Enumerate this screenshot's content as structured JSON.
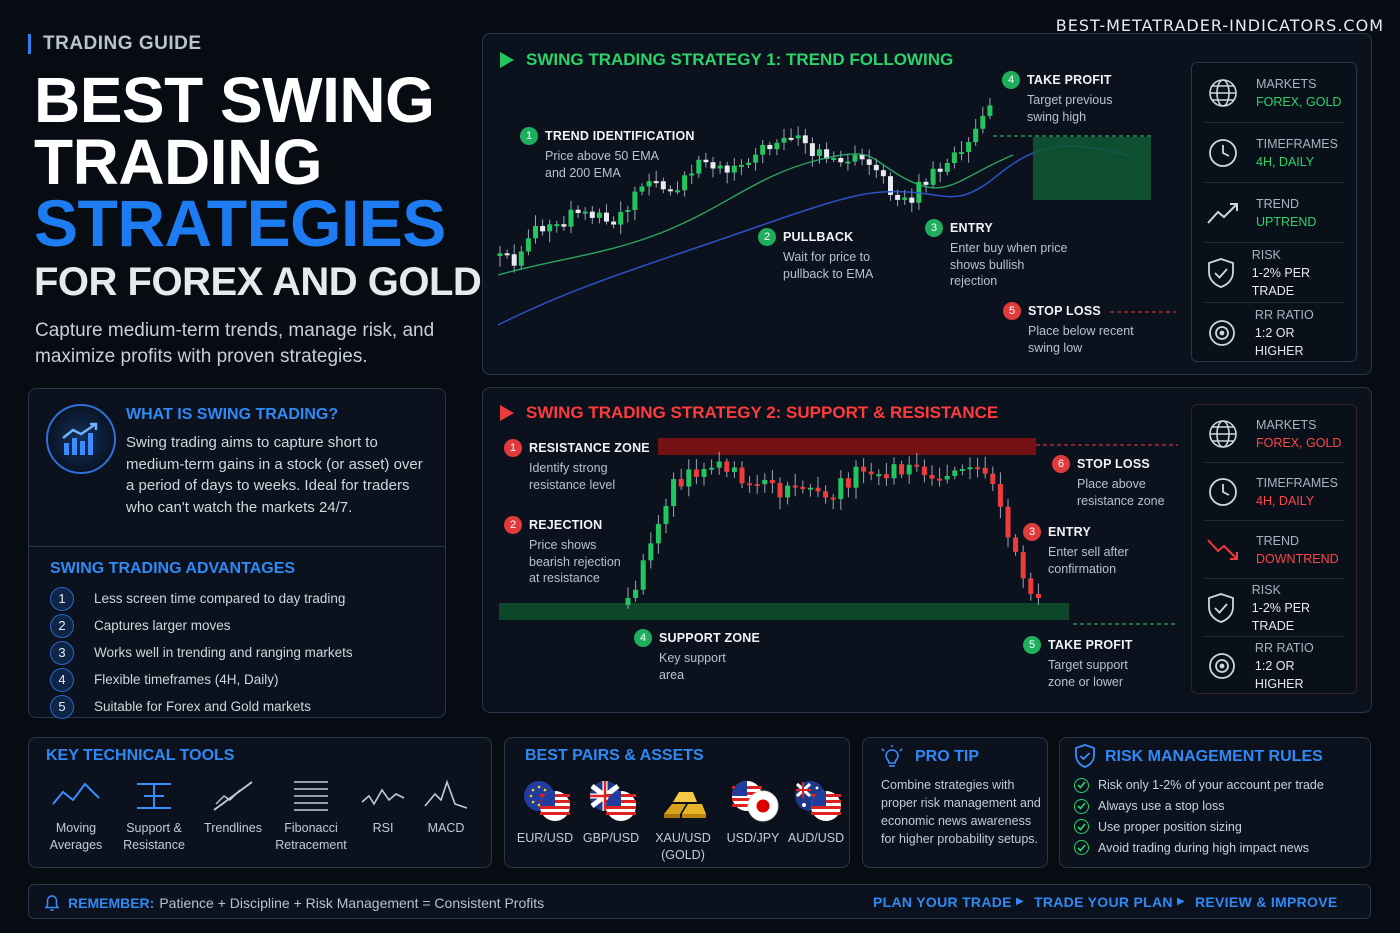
{
  "site": "BEST-METATRADER-INDICATORS.COM",
  "hero": {
    "tag": "TRADING GUIDE",
    "line1": "BEST SWING",
    "line2": "TRADING",
    "line3": "STRATEGIES",
    "line4": "FOR FOREX AND GOLD",
    "subtitle": "Capture medium-term trends, manage risk, and maximize profits with proven strategies."
  },
  "what": {
    "title": "WHAT IS SWING TRADING?",
    "text": "Swing trading aims to capture short to medium-term gains in a stock (or asset) over a period of days to weeks. Ideal for traders who can't watch the markets 24/7.",
    "icon": "bar-chart-up-icon"
  },
  "advantages": {
    "title": "SWING TRADING ADVANTAGES",
    "items": [
      {
        "num": "1",
        "text": "Less screen time compared to day trading"
      },
      {
        "num": "2",
        "text": "Captures larger moves"
      },
      {
        "num": "3",
        "text": "Works well in trending and ranging markets"
      },
      {
        "num": "4",
        "text": "Flexible timeframes (4H, Daily)"
      },
      {
        "num": "5",
        "text": "Suitable for Forex and Gold markets"
      }
    ]
  },
  "strategy1": {
    "title": "SWING TRADING STRATEGY 1: TREND FOLLOWING",
    "notes": {
      "n1": {
        "num": "1",
        "head": "TREND IDENTIFICATION",
        "body": "Price above 50 EMA and 200 EMA"
      },
      "n2": {
        "num": "2",
        "head": "PULLBACK",
        "body": "Wait for price to pullback to EMA"
      },
      "n3": {
        "num": "3",
        "head": "ENTRY",
        "body": "Enter buy when price shows bullish rejection"
      },
      "n4": {
        "num": "4",
        "head": "TAKE PROFIT",
        "body": "Target previous swing high"
      },
      "n5": {
        "num": "5",
        "head": "STOP LOSS",
        "body": "Place below recent swing low"
      }
    },
    "side": [
      {
        "label": "MARKETS",
        "value": "FOREX, GOLD",
        "icon": "globe-icon"
      },
      {
        "label": "TIMEFRAMES",
        "value": "4H, DAILY",
        "icon": "clock-icon"
      },
      {
        "label": "TREND",
        "value": "UPTREND",
        "icon": "trend-up-icon"
      },
      {
        "label": "RISK",
        "value": "1-2% PER TRADE",
        "icon": "shield-check-icon"
      },
      {
        "label": "RR RATIO",
        "value": "1:2 OR HIGHER",
        "icon": "target-icon"
      }
    ]
  },
  "strategy2": {
    "title": "SWING TRADING STRATEGY 2: SUPPORT & RESISTANCE",
    "notes": {
      "n1": {
        "num": "1",
        "head": "RESISTANCE ZONE",
        "body": "Identify strong resistance level"
      },
      "n2": {
        "num": "2",
        "head": "REJECTION",
        "body": "Price shows bearish rejection at resistance"
      },
      "n3": {
        "num": "3",
        "head": "ENTRY",
        "body": "Enter sell after confirmation"
      },
      "n4": {
        "num": "4",
        "head": "SUPPORT ZONE",
        "body": "Key support area"
      },
      "n5": {
        "num": "5",
        "head": "TAKE PROFIT",
        "body": "Target support zone or lower"
      },
      "n6": {
        "num": "6",
        "head": "STOP LOSS",
        "body": "Place above resistance zone"
      }
    },
    "side": [
      {
        "label": "MARKETS",
        "value": "FOREX, GOLD",
        "icon": "globe-icon"
      },
      {
        "label": "TIMEFRAMES",
        "value": "4H, DAILY",
        "icon": "clock-icon"
      },
      {
        "label": "TREND",
        "value": "DOWNTREND",
        "icon": "trend-down-icon"
      },
      {
        "label": "RISK",
        "value": "1-2% PER TRADE",
        "icon": "shield-check-icon"
      },
      {
        "label": "RR RATIO",
        "value": "1:2 OR HIGHER",
        "icon": "target-icon"
      }
    ]
  },
  "tools": {
    "title": "KEY TECHNICAL TOOLS",
    "items": [
      {
        "l1": "Moving",
        "l2": "Averages",
        "icon": "moving-average-icon"
      },
      {
        "l1": "Support &",
        "l2": "Resistance",
        "icon": "support-resistance-icon"
      },
      {
        "l1": "Trendlines",
        "l2": "",
        "icon": "trendline-icon"
      },
      {
        "l1": "Fibonacci",
        "l2": "Retracement",
        "icon": "fibonacci-icon"
      },
      {
        "l1": "RSI",
        "l2": "",
        "icon": "rsi-icon"
      },
      {
        "l1": "MACD",
        "l2": "",
        "icon": "macd-icon"
      }
    ]
  },
  "pairs": {
    "title": "BEST PAIRS & ASSETS",
    "items": [
      {
        "l1": "EUR/USD",
        "l2": "",
        "icon": "eur-usd-flag-icon"
      },
      {
        "l1": "GBP/USD",
        "l2": "",
        "icon": "gbp-usd-flag-icon"
      },
      {
        "l1": "XAU/USD",
        "l2": "(GOLD)",
        "icon": "gold-bars-icon"
      },
      {
        "l1": "USD/JPY",
        "l2": "",
        "icon": "usd-jpy-flag-icon"
      },
      {
        "l1": "AUD/USD",
        "l2": "",
        "icon": "aud-usd-flag-icon"
      }
    ]
  },
  "tip": {
    "title": "PRO TIP",
    "text": "Combine strategies with proper risk management and economic news awareness for higher probability setups.",
    "icon": "lightbulb-icon"
  },
  "risk": {
    "title": "RISK MANAGEMENT RULES",
    "icon": "shield-check-icon",
    "items": [
      "Risk only 1-2% of your account per trade",
      "Always use a stop loss",
      "Use proper position sizing",
      "Avoid trading during high impact news"
    ]
  },
  "footer": {
    "remember_label": "REMEMBER:",
    "remember_text": "Patience + Discipline + Risk Management = Consistent Profits",
    "steps": [
      "PLAN YOUR TRADE",
      "TRADE YOUR PLAN",
      "REVIEW & IMPROVE"
    ],
    "icon": "bell-icon"
  },
  "colors": {
    "accent": "#2f8af5",
    "bull": "#22c55e",
    "bear": "#ef3b3b"
  }
}
